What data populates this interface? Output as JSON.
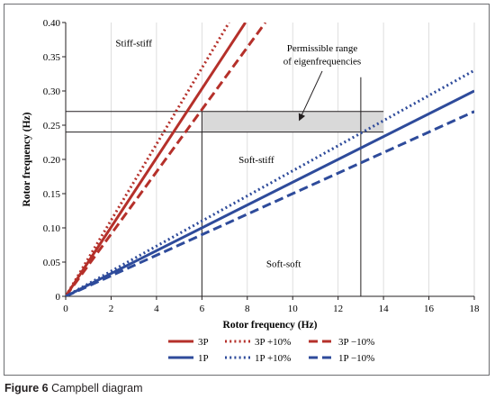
{
  "caption": {
    "label": "Figure 6",
    "text": "Campbell diagram"
  },
  "chart_data": {
    "type": "line",
    "xlabel": "Rotor frequency (Hz)",
    "ylabel": "Rotor frequency (Hz)",
    "xlim": [
      0,
      18
    ],
    "ylim": [
      0,
      0.4
    ],
    "xticks": [
      "0",
      "2",
      "4",
      "6",
      "8",
      "10",
      "12",
      "14",
      "16",
      "18"
    ],
    "yticks": [
      "0",
      "0.05",
      "0.10",
      "0.15",
      "0.20",
      "0.25",
      "0.30",
      "0.35",
      "0.40"
    ],
    "grid": "vertical",
    "legend_position": "bottom",
    "series": [
      {
        "name": "3P",
        "x": [
          0,
          7.917
        ],
        "y": [
          0,
          0.4
        ],
        "color": "#b5302a",
        "dash": "solid"
      },
      {
        "name": "3P +10%",
        "x": [
          0,
          7.197
        ],
        "y": [
          0,
          0.4
        ],
        "color": "#b5302a",
        "dash": "dotted"
      },
      {
        "name": "3P −10%",
        "x": [
          0,
          8.796
        ],
        "y": [
          0,
          0.4
        ],
        "color": "#b5302a",
        "dash": "dashed"
      },
      {
        "name": "1P",
        "x": [
          0,
          18
        ],
        "y": [
          0,
          0.3
        ],
        "color": "#2e4b9b",
        "dash": "solid"
      },
      {
        "name": "1P +10%",
        "x": [
          0,
          18
        ],
        "y": [
          0,
          0.33
        ],
        "color": "#2e4b9b",
        "dash": "dotted"
      },
      {
        "name": "1P −10%",
        "x": [
          0,
          18
        ],
        "y": [
          0,
          0.27
        ],
        "color": "#2e4b9b",
        "dash": "dashed"
      }
    ],
    "region": {
      "x": [
        6,
        14
      ],
      "y": [
        0.24,
        0.27
      ],
      "fill": "#d9d9d9"
    },
    "reference_lines": {
      "horizontal": [
        0.27,
        0.24
      ],
      "vertical": [
        6,
        13
      ]
    },
    "annotations": [
      {
        "text": "Stiff-stiff",
        "x": 3.0,
        "y": 0.365
      },
      {
        "text": "Soft-stiff",
        "x": 8.4,
        "y": 0.195
      },
      {
        "text": "Soft-soft",
        "x": 9.6,
        "y": 0.043
      },
      {
        "text": "Permissible range",
        "x": 11.3,
        "y": 0.358
      },
      {
        "text": "of eigenfrequencies",
        "x": 11.3,
        "y": 0.339
      }
    ],
    "arrow": {
      "from": [
        11.3,
        0.329
      ],
      "to": [
        10.3,
        0.258
      ]
    }
  }
}
